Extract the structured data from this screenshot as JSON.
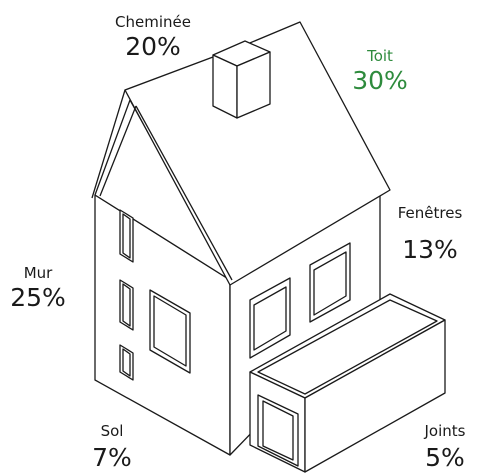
{
  "labels": {
    "chimney": {
      "name": "Cheminée",
      "value": "20%"
    },
    "roof": {
      "name": "Toit",
      "value": "30%"
    },
    "windows": {
      "name": "Fenêtres",
      "value": "13%"
    },
    "wall": {
      "name": "Mur",
      "value": "25%"
    },
    "floor": {
      "name": "Sol",
      "value": "7%"
    },
    "joints": {
      "name": "Joints",
      "value": "5%"
    }
  },
  "highlight": "roof",
  "colors": {
    "highlight": "#2e8b3d",
    "text": "#1a1a1a",
    "line": "#1a1a1a",
    "fill": "#ffffff"
  }
}
